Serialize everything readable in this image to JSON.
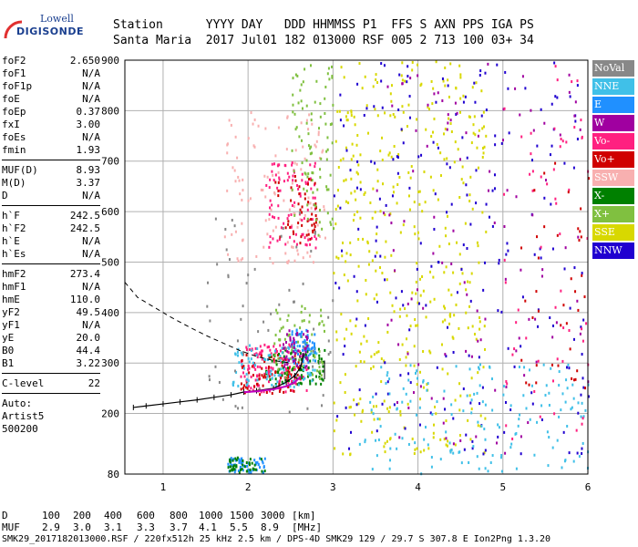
{
  "logo": {
    "brand_top": "Lowell",
    "brand_main": "DIGISONDE",
    "color": "#1a3f8f"
  },
  "header": {
    "line1": "Station      YYYY DAY   DDD HHMMSS P1  FFS S AXN PPS IGA PS",
    "line2": "Santa Maria  2017 Jul01 182 013000 RSF 005 2 713 100 03+ 34"
  },
  "params": [
    {
      "label": "foF2",
      "value": "2.650"
    },
    {
      "label": "foF1",
      "value": "N/A"
    },
    {
      "label": "foF1p",
      "value": "N/A"
    },
    {
      "label": "foE",
      "value": "N/A"
    },
    {
      "label": "foEp",
      "value": "0.37"
    },
    {
      "label": "fxI",
      "value": "3.00"
    },
    {
      "label": "foEs",
      "value": "N/A"
    },
    {
      "label": "fmin",
      "value": "1.93"
    },
    {
      "sep": true
    },
    {
      "label": "MUF(D)",
      "value": "8.93"
    },
    {
      "label": "M(D)",
      "value": "3.37"
    },
    {
      "label": "D",
      "value": "N/A"
    },
    {
      "sep": true
    },
    {
      "label": "h`F",
      "value": "242.5"
    },
    {
      "label": "h`F2",
      "value": "242.5"
    },
    {
      "label": "h`E",
      "value": "N/A"
    },
    {
      "label": "h`Es",
      "value": "N/A"
    },
    {
      "sep": true
    },
    {
      "label": "hmF2",
      "value": "273.4"
    },
    {
      "label": "hmF1",
      "value": "N/A"
    },
    {
      "label": "hmE",
      "value": "110.0"
    },
    {
      "label": "yF2",
      "value": "49.5"
    },
    {
      "label": "yF1",
      "value": "N/A"
    },
    {
      "label": "yE",
      "value": "20.0"
    },
    {
      "label": "B0",
      "value": "44.4"
    },
    {
      "label": "B1",
      "value": "3.22"
    },
    {
      "sep": true
    },
    {
      "label": "C-level",
      "value": "22"
    },
    {
      "sep": true
    }
  ],
  "autoscale": {
    "line1": "Auto:",
    "line2": "Artist5",
    "line3": "500200"
  },
  "legend": [
    {
      "label": "NoVal",
      "color": "#888888"
    },
    {
      "label": "NNE",
      "color": "#40c0e8"
    },
    {
      "label": "E",
      "color": "#2090ff"
    },
    {
      "label": "W",
      "color": "#a000a0"
    },
    {
      "label": "Vo-",
      "color": "#ff2080"
    },
    {
      "label": "Vo+",
      "color": "#d00000"
    },
    {
      "label": "SSW",
      "color": "#f8b0b0"
    },
    {
      "label": "X-",
      "color": "#008000"
    },
    {
      "label": "X+",
      "color": "#80c040"
    },
    {
      "label": "SSE",
      "color": "#d8d800"
    },
    {
      "label": "NNW",
      "color": "#2000d0"
    }
  ],
  "muf_table": {
    "d_label": "D",
    "muf_label": "MUF",
    "d_values": [
      "100",
      "200",
      "400",
      "600",
      "800",
      "1000",
      "1500",
      "3000"
    ],
    "muf_values": [
      "2.9",
      "3.0",
      "3.1",
      "3.3",
      "3.7",
      "4.1",
      "5.5",
      "8.9"
    ],
    "d_unit": "[km]",
    "muf_unit": "[MHz]"
  },
  "footer": "SMK29_2017182013000.RSF / 220fx512h 25 kHz 2.5 km / DPS-4D SMK29 129 / 29.7 S 307.8 E Ion2Png 1.3.20",
  "chart_data": {
    "type": "scatter",
    "xlim": [
      0.55,
      6.0
    ],
    "ylim": [
      80,
      900
    ],
    "x_ticks": [
      1,
      2,
      3,
      4,
      5,
      6
    ],
    "y_ticks": [
      80,
      200,
      300,
      400,
      500,
      600,
      700,
      800,
      900
    ],
    "grid": true,
    "legend_position": "right",
    "trace_virtual_height": [
      [
        0.65,
        212
      ],
      [
        0.8,
        215
      ],
      [
        1.0,
        219
      ],
      [
        1.2,
        223
      ],
      [
        1.4,
        227
      ],
      [
        1.6,
        232
      ],
      [
        1.8,
        237
      ],
      [
        1.95,
        242.5
      ],
      [
        2.1,
        245
      ],
      [
        2.3,
        250
      ],
      [
        2.45,
        262
      ],
      [
        2.55,
        275
      ],
      [
        2.62,
        292
      ],
      [
        2.65,
        315
      ]
    ],
    "profile_dashed": [
      [
        0.55,
        460
      ],
      [
        0.7,
        430
      ],
      [
        0.9,
        410
      ],
      [
        1.1,
        390
      ],
      [
        1.3,
        372
      ],
      [
        1.5,
        355
      ],
      [
        1.7,
        340
      ],
      [
        1.9,
        325
      ],
      [
        2.1,
        313
      ],
      [
        2.3,
        305
      ],
      [
        2.5,
        300
      ]
    ],
    "true_height_profile": [
      [
        1.95,
        242
      ],
      [
        2.1,
        244
      ],
      [
        2.3,
        248
      ],
      [
        2.45,
        254
      ],
      [
        2.55,
        262
      ],
      [
        2.62,
        273.4
      ]
    ],
    "fxi_marker": [
      [
        2.9,
        268
      ],
      [
        2.9,
        305
      ]
    ],
    "scatter_clusters": [
      {
        "color": "#ff2080",
        "x": [
          1.9,
          2.7
        ],
        "y": [
          245,
          340
        ],
        "n": 140
      },
      {
        "color": "#d00000",
        "x": [
          1.9,
          2.6
        ],
        "y": [
          240,
          320
        ],
        "n": 80
      },
      {
        "color": "#008000",
        "x": [
          2.2,
          2.9
        ],
        "y": [
          260,
          330
        ],
        "n": 90
      },
      {
        "color": "#80c040",
        "x": [
          2.3,
          2.9
        ],
        "y": [
          270,
          420
        ],
        "n": 70
      },
      {
        "color": "#40c0e8",
        "x": [
          1.8,
          2.8
        ],
        "y": [
          255,
          340
        ],
        "n": 90
      },
      {
        "color": "#2090ff",
        "x": [
          2.5,
          2.8
        ],
        "y": [
          300,
          370
        ],
        "n": 60
      },
      {
        "color": "#a000a0",
        "x": [
          2.4,
          2.7
        ],
        "y": [
          290,
          370
        ],
        "n": 50
      },
      {
        "color": "#f8b0b0",
        "x": [
          1.7,
          2.9
        ],
        "y": [
          500,
          800
        ],
        "n": 120
      },
      {
        "color": "#d8d800",
        "x": [
          3.0,
          4.8
        ],
        "y": [
          120,
          900
        ],
        "n": 420
      },
      {
        "color": "#ff2080",
        "x": [
          2.2,
          2.8
        ],
        "y": [
          530,
          700
        ],
        "n": 90
      },
      {
        "color": "#d00000",
        "x": [
          2.3,
          2.8
        ],
        "y": [
          540,
          680
        ],
        "n": 50
      },
      {
        "color": "#80c040",
        "x": [
          2.5,
          3.0
        ],
        "y": [
          550,
          900
        ],
        "n": 90
      },
      {
        "color": "#2000d0",
        "x": [
          3.0,
          6.0
        ],
        "y": [
          120,
          900
        ],
        "n": 220
      },
      {
        "color": "#a000a0",
        "x": [
          3.5,
          6.0
        ],
        "y": [
          120,
          900
        ],
        "n": 110
      },
      {
        "color": "#40c0e8",
        "x": [
          3.3,
          6.0
        ],
        "y": [
          82,
          300
        ],
        "n": 160
      },
      {
        "color": "#2090ff",
        "x": [
          1.75,
          2.2
        ],
        "y": [
          85,
          115
        ],
        "n": 60
      },
      {
        "color": "#008000",
        "x": [
          1.75,
          2.2
        ],
        "y": [
          85,
          115
        ],
        "n": 40
      },
      {
        "color": "#ff2080",
        "x": [
          5.0,
          6.0
        ],
        "y": [
          150,
          900
        ],
        "n": 60
      },
      {
        "color": "#888888",
        "x": [
          1.5,
          3.0
        ],
        "y": [
          200,
          600
        ],
        "n": 60
      },
      {
        "color": "#d00000",
        "x": [
          5.2,
          6.0
        ],
        "y": [
          200,
          700
        ],
        "n": 40
      }
    ]
  }
}
